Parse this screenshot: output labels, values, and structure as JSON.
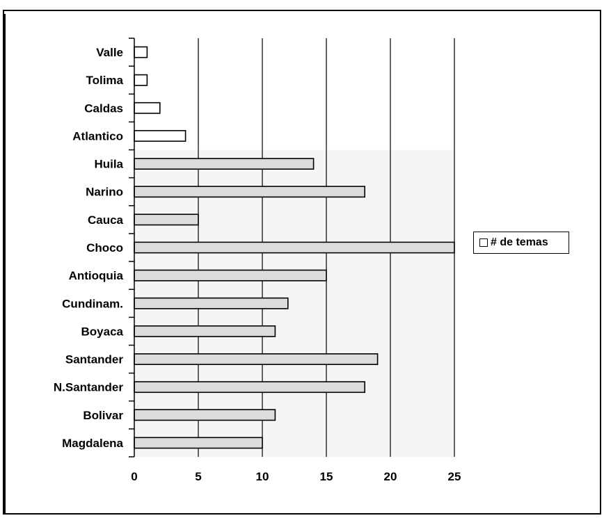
{
  "chart_data": {
    "type": "bar",
    "orientation": "horizontal",
    "categories": [
      "Valle",
      "Tolima",
      "Caldas",
      "Atlantico",
      "Huila",
      "Narino",
      "Cauca",
      "Choco",
      "Antioquia",
      "Cundinam.",
      "Boyaca",
      "Santander",
      "N.Santander",
      "Bolivar",
      "Magdalena"
    ],
    "series": [
      {
        "name": "# de temas",
        "values": [
          1,
          1,
          2,
          4,
          14,
          18,
          5,
          25,
          15,
          12,
          11,
          19,
          18,
          11,
          10
        ]
      }
    ],
    "xlim": [
      0,
      25
    ],
    "xticks": [
      "0",
      "5",
      "10",
      "15",
      "20",
      "25"
    ],
    "grid": "vertical",
    "legend_position": "right",
    "colors": {
      "bar_fill_light": "#ffffff",
      "bar_fill_shaded": "#dcdcdc",
      "gridline": "#000000",
      "frame": "#000000"
    }
  }
}
